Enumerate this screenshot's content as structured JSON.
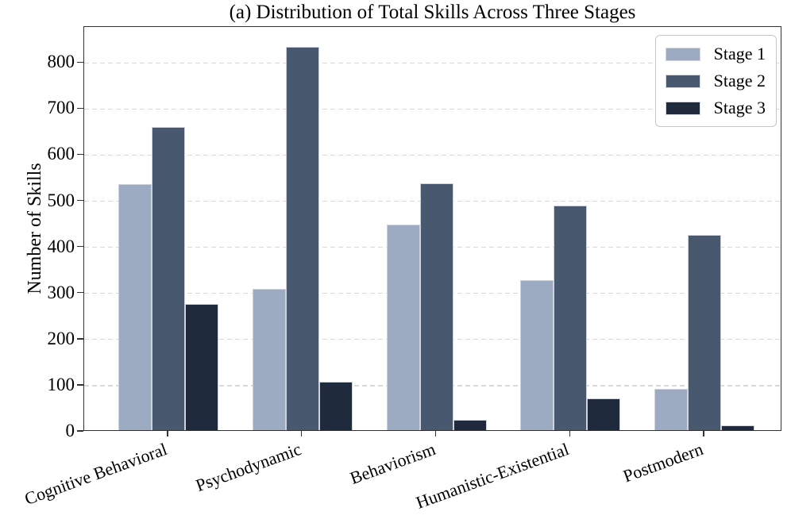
{
  "chart_data": {
    "type": "bar",
    "title": "(a) Distribution of Total Skills Across Three Stages",
    "xlabel": "",
    "ylabel": "Number of Skills",
    "categories": [
      "Cognitive Behavioral",
      "Psychodynamic",
      "Behaviorism",
      "Humanistic-Existential",
      "Postmodern"
    ],
    "series": [
      {
        "name": "Stage 1",
        "color": "#9CABC2",
        "values": [
          535,
          307,
          447,
          326,
          90
        ]
      },
      {
        "name": "Stage 2",
        "color": "#48596F",
        "values": [
          661,
          835,
          537,
          489,
          425
        ]
      },
      {
        "name": "Stage 3",
        "color": "#1F2B3D",
        "values": [
          275,
          106,
          22,
          70,
          11
        ]
      }
    ],
    "yticks": [
      0,
      100,
      200,
      300,
      400,
      500,
      600,
      700,
      800
    ],
    "ylim": [
      0,
      878
    ],
    "grid": "horizontal-dashed",
    "gridline_color": "#d9d9d9",
    "axis_color": "#333333",
    "legend_position": "upper-right",
    "legend_entries": [
      "Stage 1",
      "Stage 2",
      "Stage 3"
    ]
  }
}
